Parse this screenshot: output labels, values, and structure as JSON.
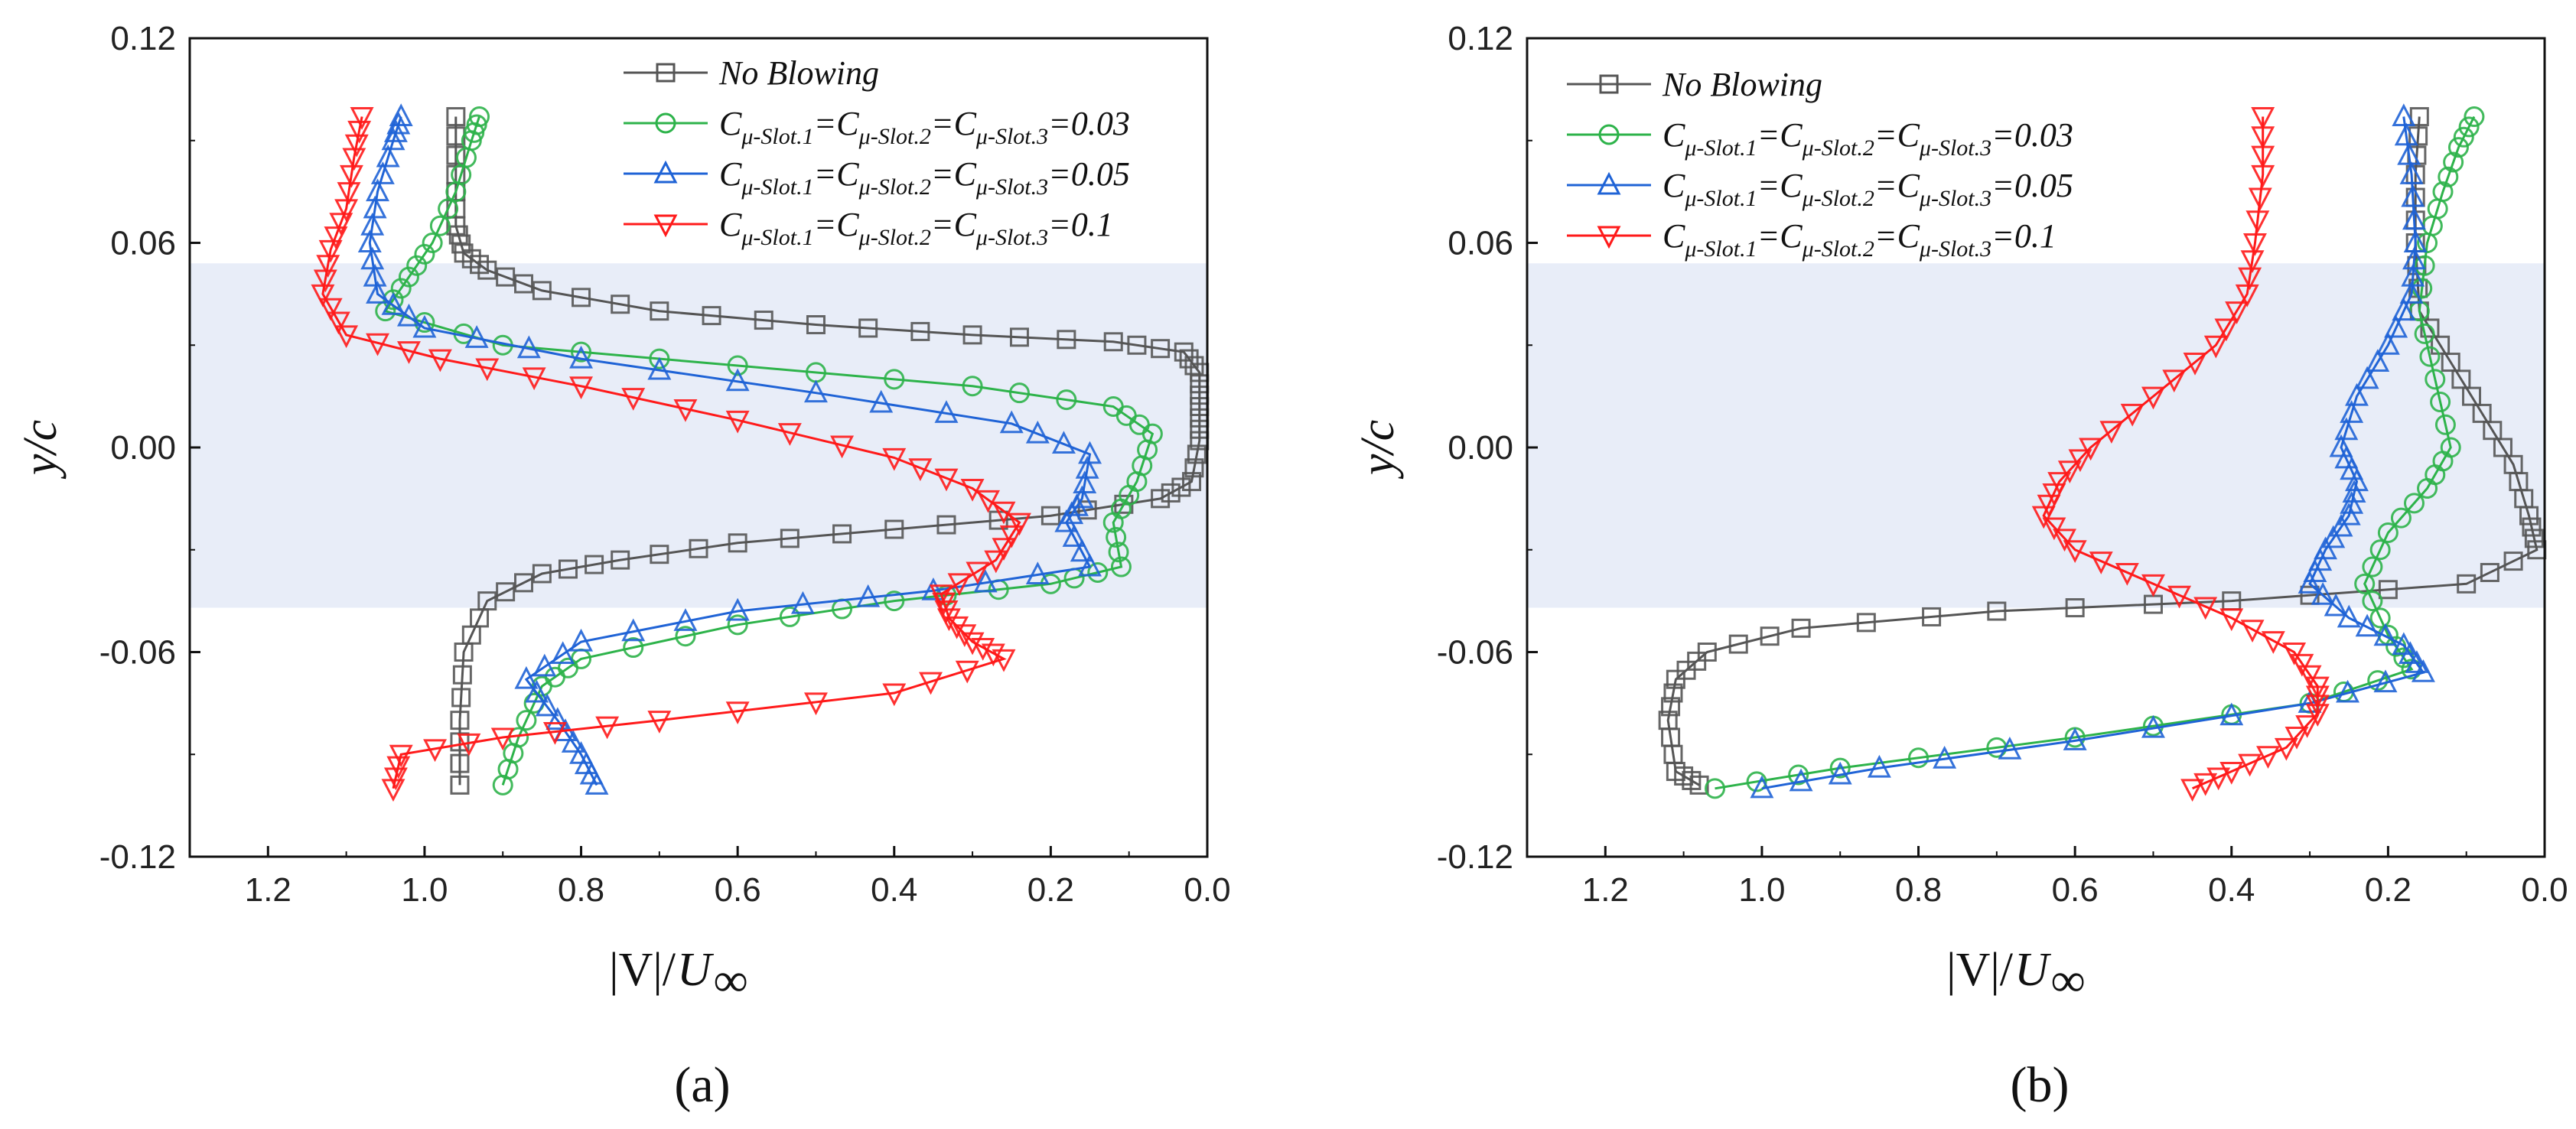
{
  "colors": {
    "no_blowing": "#555555",
    "c003": "#2db34a",
    "c005": "#1f63d6",
    "c01": "#ff1a1a",
    "band": "#e8edf8"
  },
  "legend": {
    "no_blowing": "No Blowing",
    "c_label": "C",
    "sub1": "μ-Slot.1",
    "sub2": "μ-Slot.2",
    "sub3": "μ-Slot.3",
    "eq": "=",
    "v003": "0.03",
    "v005": "0.05",
    "v01": "0.1"
  },
  "chart_data": [
    {
      "type": "line",
      "panel_label": "(a)",
      "xlabel_main": "|V|/",
      "xlabel_U": "U",
      "xlabel_sub": "∞",
      "ylabel": "y/c",
      "xlim": [
        1.3,
        0.0
      ],
      "ylim": [
        -0.12,
        0.12
      ],
      "x_reversed": true,
      "xticks": [
        "1.2",
        "1.0",
        "0.8",
        "0.6",
        "0.4",
        "0.2",
        "0.0"
      ],
      "yticks": [
        "0.12",
        "0.06",
        "0.00",
        "-0.06",
        "-0.12"
      ],
      "shaded_band_y": [
        -0.047,
        0.054
      ],
      "series": [
        {
          "name": "No Blowing",
          "marker": "square",
          "color_key": "no_blowing",
          "points": [
            [
              0.96,
              0.097
            ],
            [
              0.96,
              0.08
            ],
            [
              0.96,
              0.065
            ],
            [
              0.95,
              0.057
            ],
            [
              0.92,
              0.052
            ],
            [
              0.85,
              0.046
            ],
            [
              0.7,
              0.04
            ],
            [
              0.5,
              0.036
            ],
            [
              0.3,
              0.033
            ],
            [
              0.12,
              0.031
            ],
            [
              0.03,
              0.028
            ],
            [
              0.01,
              0.022
            ],
            [
              0.01,
              0.012
            ],
            [
              0.01,
              0.002
            ],
            [
              0.02,
              -0.01
            ],
            [
              0.06,
              -0.015
            ],
            [
              0.2,
              -0.02
            ],
            [
              0.4,
              -0.024
            ],
            [
              0.6,
              -0.028
            ],
            [
              0.75,
              -0.033
            ],
            [
              0.85,
              -0.037
            ],
            [
              0.92,
              -0.045
            ],
            [
              0.95,
              -0.06
            ],
            [
              0.955,
              -0.08
            ],
            [
              0.955,
              -0.099
            ]
          ]
        },
        {
          "name": "Cμ=0.03",
          "marker": "circle",
          "color_key": "c003",
          "points": [
            [
              0.93,
              0.097
            ],
            [
              0.94,
              0.09
            ],
            [
              0.96,
              0.075
            ],
            [
              0.99,
              0.06
            ],
            [
              1.02,
              0.05
            ],
            [
              1.05,
              0.04
            ],
            [
              0.9,
              0.03
            ],
            [
              0.6,
              0.024
            ],
            [
              0.3,
              0.018
            ],
            [
              0.12,
              0.012
            ],
            [
              0.07,
              0.004
            ],
            [
              0.09,
              -0.01
            ],
            [
              0.12,
              -0.022
            ],
            [
              0.11,
              -0.035
            ],
            [
              0.2,
              -0.04
            ],
            [
              0.4,
              -0.045
            ],
            [
              0.6,
              -0.052
            ],
            [
              0.8,
              -0.062
            ],
            [
              0.85,
              -0.07
            ],
            [
              0.88,
              -0.085
            ],
            [
              0.9,
              -0.099
            ]
          ]
        },
        {
          "name": "Cμ=0.05",
          "marker": "triangle-up",
          "color_key": "c005",
          "points": [
            [
              1.03,
              0.097
            ],
            [
              1.04,
              0.09
            ],
            [
              1.06,
              0.075
            ],
            [
              1.07,
              0.06
            ],
            [
              1.06,
              0.045
            ],
            [
              1.0,
              0.035
            ],
            [
              0.8,
              0.026
            ],
            [
              0.5,
              0.016
            ],
            [
              0.25,
              0.007
            ],
            [
              0.15,
              -0.002
            ],
            [
              0.16,
              -0.015
            ],
            [
              0.18,
              -0.022
            ],
            [
              0.15,
              -0.035
            ],
            [
              0.35,
              -0.042
            ],
            [
              0.6,
              -0.048
            ],
            [
              0.8,
              -0.057
            ],
            [
              0.87,
              -0.068
            ],
            [
              0.83,
              -0.08
            ],
            [
              0.8,
              -0.09
            ],
            [
              0.78,
              -0.099
            ]
          ]
        },
        {
          "name": "Cμ=0.1",
          "marker": "triangle-down",
          "color_key": "c01",
          "points": [
            [
              1.08,
              0.097
            ],
            [
              1.09,
              0.085
            ],
            [
              1.1,
              0.07
            ],
            [
              1.12,
              0.058
            ],
            [
              1.13,
              0.045
            ],
            [
              1.1,
              0.033
            ],
            [
              0.98,
              0.026
            ],
            [
              0.8,
              0.018
            ],
            [
              0.6,
              0.008
            ],
            [
              0.4,
              -0.003
            ],
            [
              0.3,
              -0.012
            ],
            [
              0.24,
              -0.022
            ],
            [
              0.27,
              -0.033
            ],
            [
              0.34,
              -0.043
            ],
            [
              0.33,
              -0.05
            ],
            [
              0.3,
              -0.057
            ],
            [
              0.26,
              -0.062
            ],
            [
              0.4,
              -0.072
            ],
            [
              0.7,
              -0.08
            ],
            [
              0.9,
              -0.085
            ],
            [
              1.03,
              -0.09
            ],
            [
              1.04,
              -0.1
            ]
          ]
        }
      ]
    },
    {
      "type": "line",
      "panel_label": "(b)",
      "xlabel_main": "|V|/",
      "xlabel_U": "U",
      "xlabel_sub": "∞",
      "ylabel": "y/c",
      "xlim": [
        1.3,
        0.0
      ],
      "ylim": [
        -0.12,
        0.12
      ],
      "x_reversed": true,
      "xticks": [
        "1.2",
        "1.0",
        "0.8",
        "0.6",
        "0.4",
        "0.2",
        "0.0"
      ],
      "yticks": [
        "0.12",
        "0.06",
        "0.00",
        "-0.06",
        "-0.12"
      ],
      "shaded_band_y": [
        -0.047,
        0.054
      ],
      "series": [
        {
          "name": "No Blowing",
          "marker": "square",
          "color_key": "no_blowing",
          "points": [
            [
              0.16,
              0.097
            ],
            [
              0.165,
              0.08
            ],
            [
              0.165,
              0.06
            ],
            [
              0.16,
              0.04
            ],
            [
              0.12,
              0.025
            ],
            [
              0.08,
              0.01
            ],
            [
              0.04,
              -0.005
            ],
            [
              0.02,
              -0.02
            ],
            [
              0.01,
              -0.03
            ],
            [
              0.1,
              -0.04
            ],
            [
              0.4,
              -0.045
            ],
            [
              0.7,
              -0.048
            ],
            [
              0.95,
              -0.053
            ],
            [
              1.07,
              -0.06
            ],
            [
              1.11,
              -0.068
            ],
            [
              1.12,
              -0.08
            ],
            [
              1.11,
              -0.095
            ],
            [
              1.08,
              -0.099
            ]
          ]
        },
        {
          "name": "Cμ=0.03",
          "marker": "circle",
          "color_key": "c003",
          "points": [
            [
              0.09,
              0.097
            ],
            [
              0.11,
              0.088
            ],
            [
              0.13,
              0.075
            ],
            [
              0.15,
              0.06
            ],
            [
              0.16,
              0.04
            ],
            [
              0.14,
              0.02
            ],
            [
              0.12,
              0.0
            ],
            [
              0.15,
              -0.012
            ],
            [
              0.2,
              -0.025
            ],
            [
              0.23,
              -0.04
            ],
            [
              0.2,
              -0.055
            ],
            [
              0.17,
              -0.065
            ],
            [
              0.3,
              -0.075
            ],
            [
              0.6,
              -0.085
            ],
            [
              0.9,
              -0.094
            ],
            [
              1.06,
              -0.1
            ]
          ]
        },
        {
          "name": "Cμ=0.05",
          "marker": "triangle-up",
          "color_key": "c005",
          "points": [
            [
              0.18,
              0.097
            ],
            [
              0.17,
              0.08
            ],
            [
              0.165,
              0.06
            ],
            [
              0.17,
              0.045
            ],
            [
              0.2,
              0.03
            ],
            [
              0.24,
              0.015
            ],
            [
              0.26,
              0.0
            ],
            [
              0.24,
              -0.01
            ],
            [
              0.25,
              -0.02
            ],
            [
              0.28,
              -0.03
            ],
            [
              0.3,
              -0.04
            ],
            [
              0.25,
              -0.05
            ],
            [
              0.18,
              -0.058
            ],
            [
              0.155,
              -0.066
            ],
            [
              0.3,
              -0.075
            ],
            [
              0.6,
              -0.086
            ],
            [
              0.85,
              -0.094
            ],
            [
              1.0,
              -0.1
            ]
          ]
        },
        {
          "name": "Cμ=0.1",
          "marker": "triangle-down",
          "color_key": "c01",
          "points": [
            [
              0.36,
              0.097
            ],
            [
              0.36,
              0.08
            ],
            [
              0.37,
              0.06
            ],
            [
              0.38,
              0.045
            ],
            [
              0.42,
              0.03
            ],
            [
              0.5,
              0.015
            ],
            [
              0.58,
              0.0
            ],
            [
              0.62,
              -0.01
            ],
            [
              0.64,
              -0.02
            ],
            [
              0.6,
              -0.03
            ],
            [
              0.5,
              -0.04
            ],
            [
              0.4,
              -0.05
            ],
            [
              0.32,
              -0.06
            ],
            [
              0.29,
              -0.07
            ],
            [
              0.29,
              -0.078
            ],
            [
              0.33,
              -0.088
            ],
            [
              0.4,
              -0.095
            ],
            [
              0.45,
              -0.1
            ]
          ]
        }
      ]
    }
  ]
}
